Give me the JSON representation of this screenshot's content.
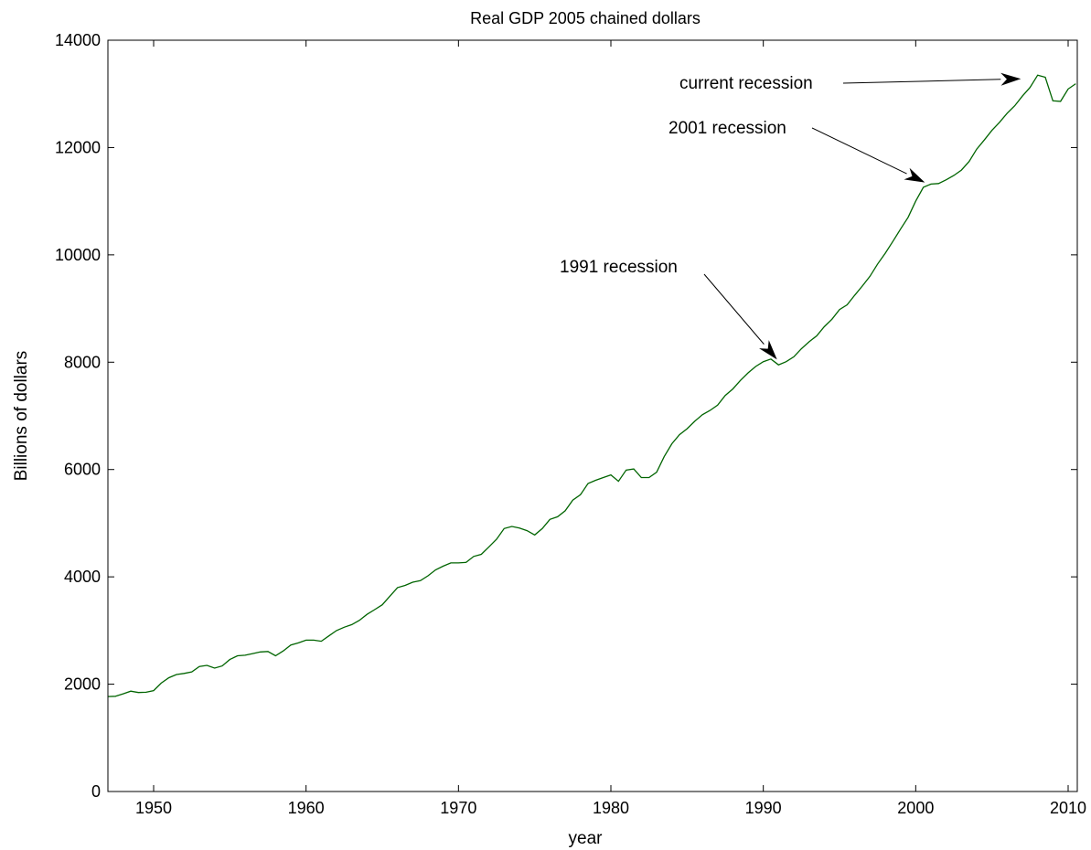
{
  "chart_data": {
    "type": "line",
    "title": "Real GDP 2005 chained dollars",
    "xlabel": "year",
    "ylabel": "Billions of dollars",
    "xlim": [
      1947,
      2010.6
    ],
    "ylim": [
      0,
      14000
    ],
    "xticks": [
      1950,
      1960,
      1970,
      1980,
      1990,
      2000,
      2010
    ],
    "yticks": [
      0,
      2000,
      4000,
      6000,
      8000,
      10000,
      12000,
      14000
    ],
    "grid": false,
    "line_color": "#006400",
    "series": [
      {
        "x": [
          1947.0,
          1947.5,
          1948.0,
          1948.5,
          1949.0,
          1949.5,
          1950.0,
          1950.5,
          1951.0,
          1951.5,
          1952.0,
          1952.5,
          1953.0,
          1953.5,
          1954.0,
          1954.5,
          1955.0,
          1955.5,
          1956.0,
          1956.5,
          1957.0,
          1957.5,
          1958.0,
          1958.5,
          1959.0,
          1959.5,
          1960.0,
          1960.5,
          1961.0,
          1961.5,
          1962.0,
          1962.5,
          1963.0,
          1963.5,
          1964.0,
          1964.5,
          1965.0,
          1965.5,
          1966.0,
          1966.5,
          1967.0,
          1967.5,
          1968.0,
          1968.5,
          1969.0,
          1969.5,
          1970.0,
          1970.5,
          1971.0,
          1971.5,
          1972.0,
          1972.5,
          1973.0,
          1973.5,
          1974.0,
          1974.5,
          1975.0,
          1975.5,
          1976.0,
          1976.5,
          1977.0,
          1977.5,
          1978.0,
          1978.5,
          1979.0,
          1979.5,
          1980.0,
          1980.5,
          1981.0,
          1981.5,
          1982.0,
          1982.5,
          1983.0,
          1983.5,
          1984.0,
          1984.5,
          1985.0,
          1985.5,
          1986.0,
          1986.5,
          1987.0,
          1987.5,
          1988.0,
          1988.5,
          1989.0,
          1989.5,
          1990.0,
          1990.5,
          1991.0,
          1991.5,
          1992.0,
          1992.5,
          1993.0,
          1993.5,
          1994.0,
          1994.5,
          1995.0,
          1995.5,
          1996.0,
          1996.5,
          1997.0,
          1997.5,
          1998.0,
          1998.5,
          1999.0,
          1999.5,
          2000.0,
          2000.5,
          2001.0,
          2001.5,
          2002.0,
          2002.5,
          2003.0,
          2003.5,
          2004.0,
          2004.5,
          2005.0,
          2005.5,
          2006.0,
          2006.5,
          2007.0,
          2007.5,
          2008.0,
          2008.5,
          2009.0,
          2009.5,
          2010.0,
          2010.5
        ],
        "y": [
          1770,
          1775,
          1820,
          1870,
          1845,
          1850,
          1880,
          2020,
          2120,
          2180,
          2200,
          2230,
          2330,
          2350,
          2300,
          2340,
          2460,
          2530,
          2540,
          2570,
          2600,
          2610,
          2530,
          2620,
          2730,
          2770,
          2820,
          2820,
          2800,
          2900,
          3000,
          3060,
          3110,
          3190,
          3300,
          3390,
          3480,
          3640,
          3800,
          3840,
          3900,
          3930,
          4020,
          4130,
          4200,
          4260,
          4260,
          4270,
          4380,
          4420,
          4560,
          4700,
          4900,
          4940,
          4910,
          4860,
          4780,
          4900,
          5070,
          5120,
          5230,
          5430,
          5530,
          5740,
          5800,
          5850,
          5900,
          5780,
          5990,
          6010,
          5850,
          5850,
          5950,
          6240,
          6480,
          6650,
          6760,
          6900,
          7020,
          7100,
          7200,
          7380,
          7500,
          7660,
          7800,
          7920,
          8010,
          8060,
          7950,
          8010,
          8100,
          8250,
          8380,
          8490,
          8660,
          8800,
          8980,
          9070,
          9250,
          9420,
          9600,
          9830,
          10030,
          10250,
          10480,
          10700,
          11000,
          11260,
          11320,
          11330,
          11400,
          11480,
          11580,
          11740,
          11970,
          12140,
          12320,
          12470,
          12640,
          12780,
          12960,
          13120,
          13350,
          13310,
          12870,
          12860,
          13090,
          13190
        ]
      }
    ],
    "annotations": [
      {
        "text": "current recession",
        "x": 2006.9,
        "y": 13280
      },
      {
        "text": "2001 recession",
        "x": 2000.6,
        "y": 11350
      },
      {
        "text": "1991 recession",
        "x": 1990.9,
        "y": 8050
      }
    ]
  }
}
